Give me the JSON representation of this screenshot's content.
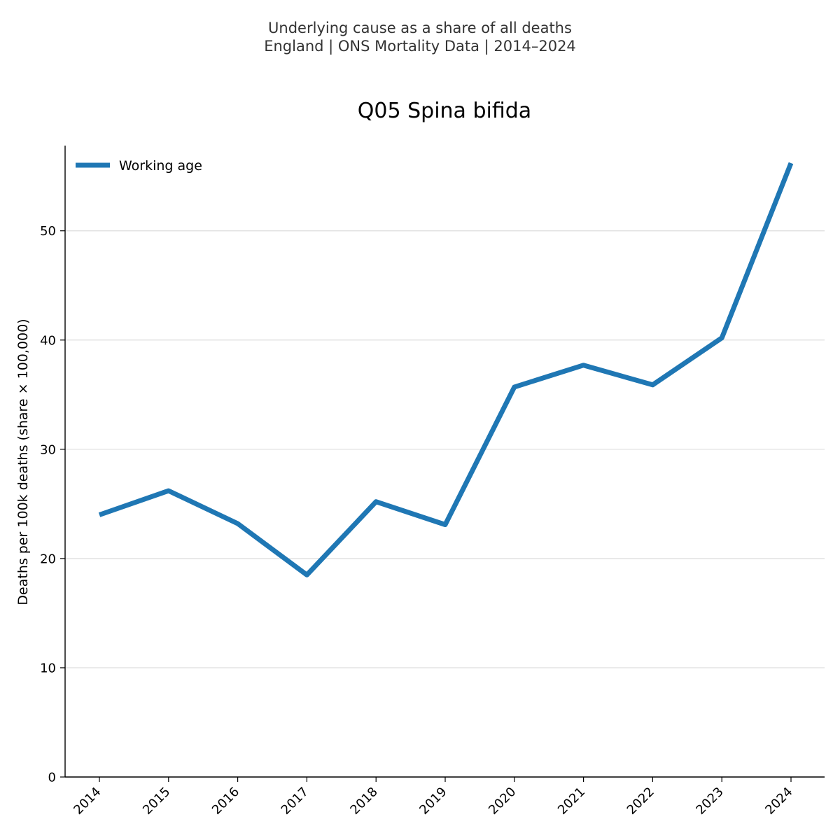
{
  "header": {
    "line1": "Underlying cause as a share of all deaths",
    "line2": "England | ONS Mortality Data | 2014–2024"
  },
  "chart_data": {
    "type": "line",
    "title": "Q05 Spina bifida",
    "xlabel": "",
    "ylabel": "Deaths per 100k deaths (share × 100,000)",
    "categories": [
      "2014",
      "2015",
      "2016",
      "2017",
      "2018",
      "2019",
      "2020",
      "2021",
      "2022",
      "2023",
      "2024"
    ],
    "series": [
      {
        "name": "Working age",
        "color": "#1f77b4",
        "values": [
          24.0,
          26.2,
          23.2,
          18.5,
          25.2,
          23.1,
          35.7,
          37.7,
          35.9,
          40.2,
          56.2
        ]
      }
    ],
    "yticks": [
      0,
      10,
      20,
      30,
      40,
      50
    ],
    "ylim": [
      0,
      57.8
    ],
    "grid": "horizontal",
    "legend": "top-left"
  }
}
